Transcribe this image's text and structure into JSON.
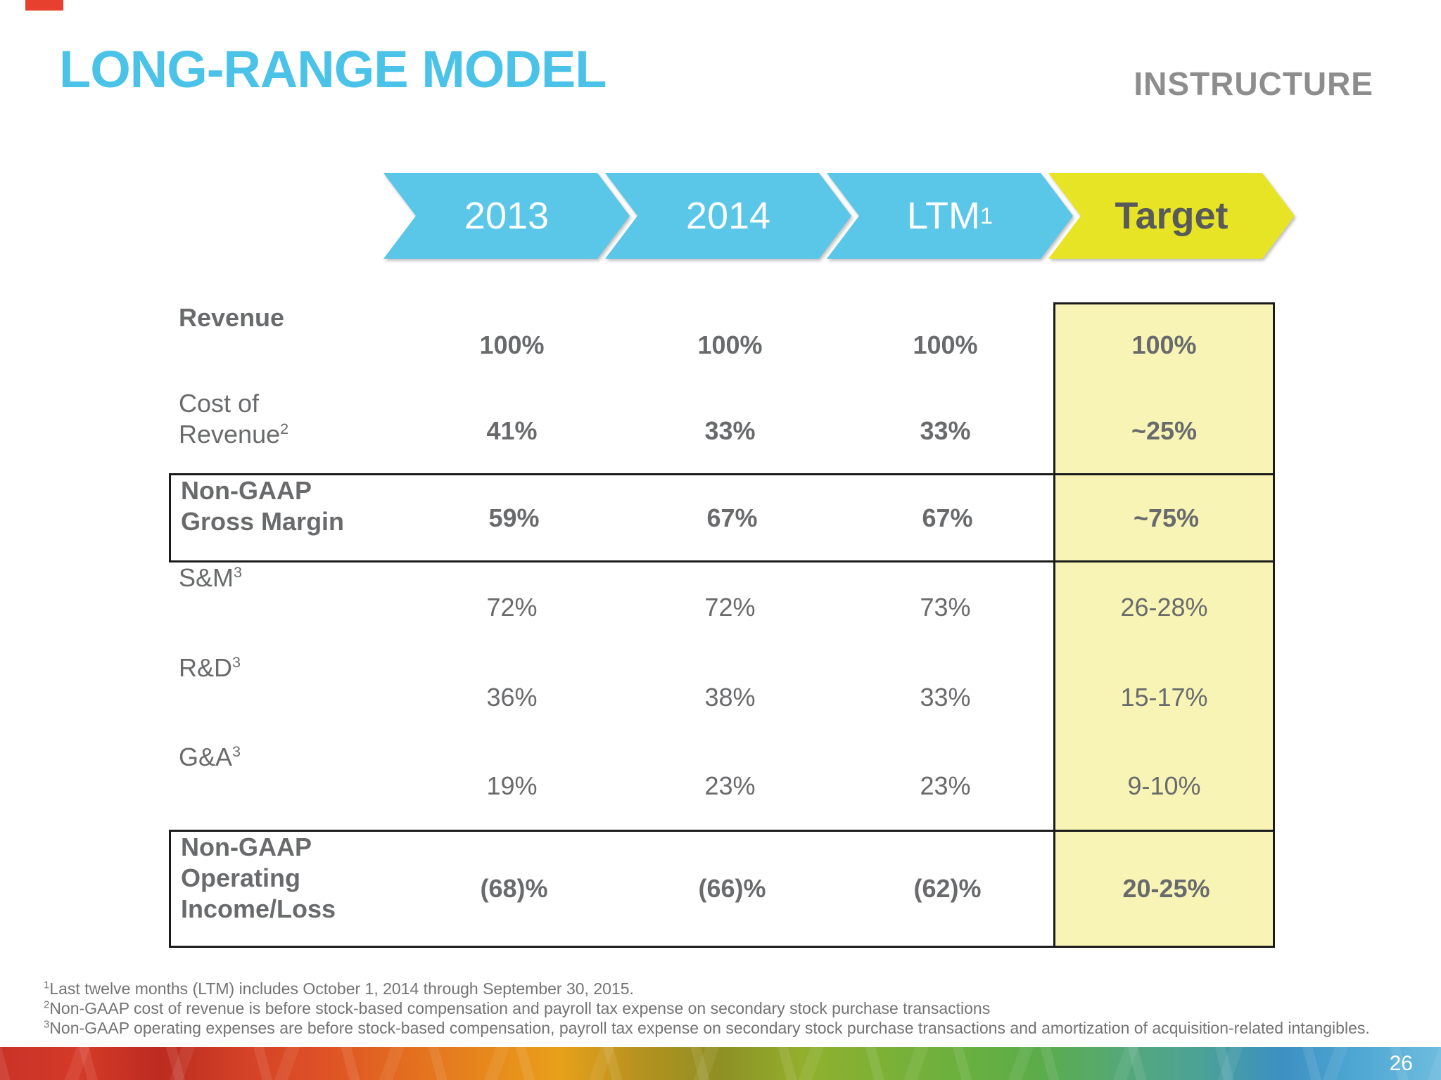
{
  "slide": {
    "title": "LONG-RANGE MODEL",
    "logo": "INSTRUCTURE",
    "page_number": "26"
  },
  "chevrons": [
    {
      "label": "2013",
      "sup": "",
      "style": "blue"
    },
    {
      "label": "2014",
      "sup": "",
      "style": "blue"
    },
    {
      "label": "LTM",
      "sup": "1",
      "style": "blue"
    },
    {
      "label": "Target",
      "sup": "",
      "style": "yellow"
    }
  ],
  "table": {
    "columns": [
      "2013",
      "2014",
      "LTM",
      "Target"
    ],
    "rows": [
      {
        "label_lines": [
          "Revenue"
        ],
        "sup": "",
        "values": [
          "100%",
          "100%",
          "100%",
          "100%"
        ],
        "bold_label": true,
        "bold_values": true,
        "boxed": false
      },
      {
        "label_lines": [
          "Cost of",
          "Revenue"
        ],
        "sup": "2",
        "values": [
          "41%",
          "33%",
          "33%",
          "~25%"
        ],
        "bold_label": false,
        "bold_values": true,
        "boxed": false
      },
      {
        "label_lines": [
          "Non-GAAP",
          "Gross Margin"
        ],
        "sup": "",
        "values": [
          "59%",
          "67%",
          "67%",
          "~75%"
        ],
        "bold_label": true,
        "bold_values": true,
        "boxed": true
      },
      {
        "label_lines": [
          "S&M"
        ],
        "sup": "3",
        "values": [
          "72%",
          "72%",
          "73%",
          "26-28%"
        ],
        "bold_label": false,
        "bold_values": false,
        "boxed": false
      },
      {
        "label_lines": [
          "R&D"
        ],
        "sup": "3",
        "values": [
          "36%",
          "38%",
          "33%",
          "15-17%"
        ],
        "bold_label": false,
        "bold_values": false,
        "boxed": false
      },
      {
        "label_lines": [
          "G&A"
        ],
        "sup": "3",
        "values": [
          "19%",
          "23%",
          "23%",
          "9-10%"
        ],
        "bold_label": false,
        "bold_values": false,
        "boxed": false
      },
      {
        "label_lines": [
          "Non-GAAP",
          "Operating",
          "Income/Loss"
        ],
        "sup": "",
        "values": [
          "(68)%",
          "(66)%",
          "(62)%",
          "20-25%"
        ],
        "bold_label": true,
        "bold_values": true,
        "boxed": true
      }
    ]
  },
  "footnotes": [
    {
      "sup": "1",
      "text": "Last twelve months (LTM) includes October 1, 2014 through September 30, 2015."
    },
    {
      "sup": "2",
      "text": "Non-GAAP cost of revenue is before stock-based compensation and payroll tax expense on secondary stock purchase transactions"
    },
    {
      "sup": "3",
      "text": "Non-GAAP operating expenses are before stock-based compensation, payroll tax expense on secondary stock purchase transactions and amortization of acquisition-related intangibles."
    }
  ],
  "colors": {
    "title": "#4BC2E8",
    "chevron_blue": "#5AC6E8",
    "chevron_yellow": "#E7E426",
    "target_fill": "#F7F4B6",
    "table_text": "#696A6C",
    "logo_gray": "#8D8D8D",
    "border_black": "#1B1B1B",
    "strip_colors": [
      "#C93327",
      "#D53A28",
      "#BB2B20",
      "#D34127",
      "#DE5126",
      "#E36B1F",
      "#E6861C",
      "#E8A01A",
      "#B5921F",
      "#8E8F24",
      "#92AF2D",
      "#7DB136",
      "#6BB03F",
      "#5BAC4B",
      "#55A878",
      "#4BA295",
      "#3C90C2",
      "#4FA8D3",
      "#6FBCDF"
    ]
  }
}
